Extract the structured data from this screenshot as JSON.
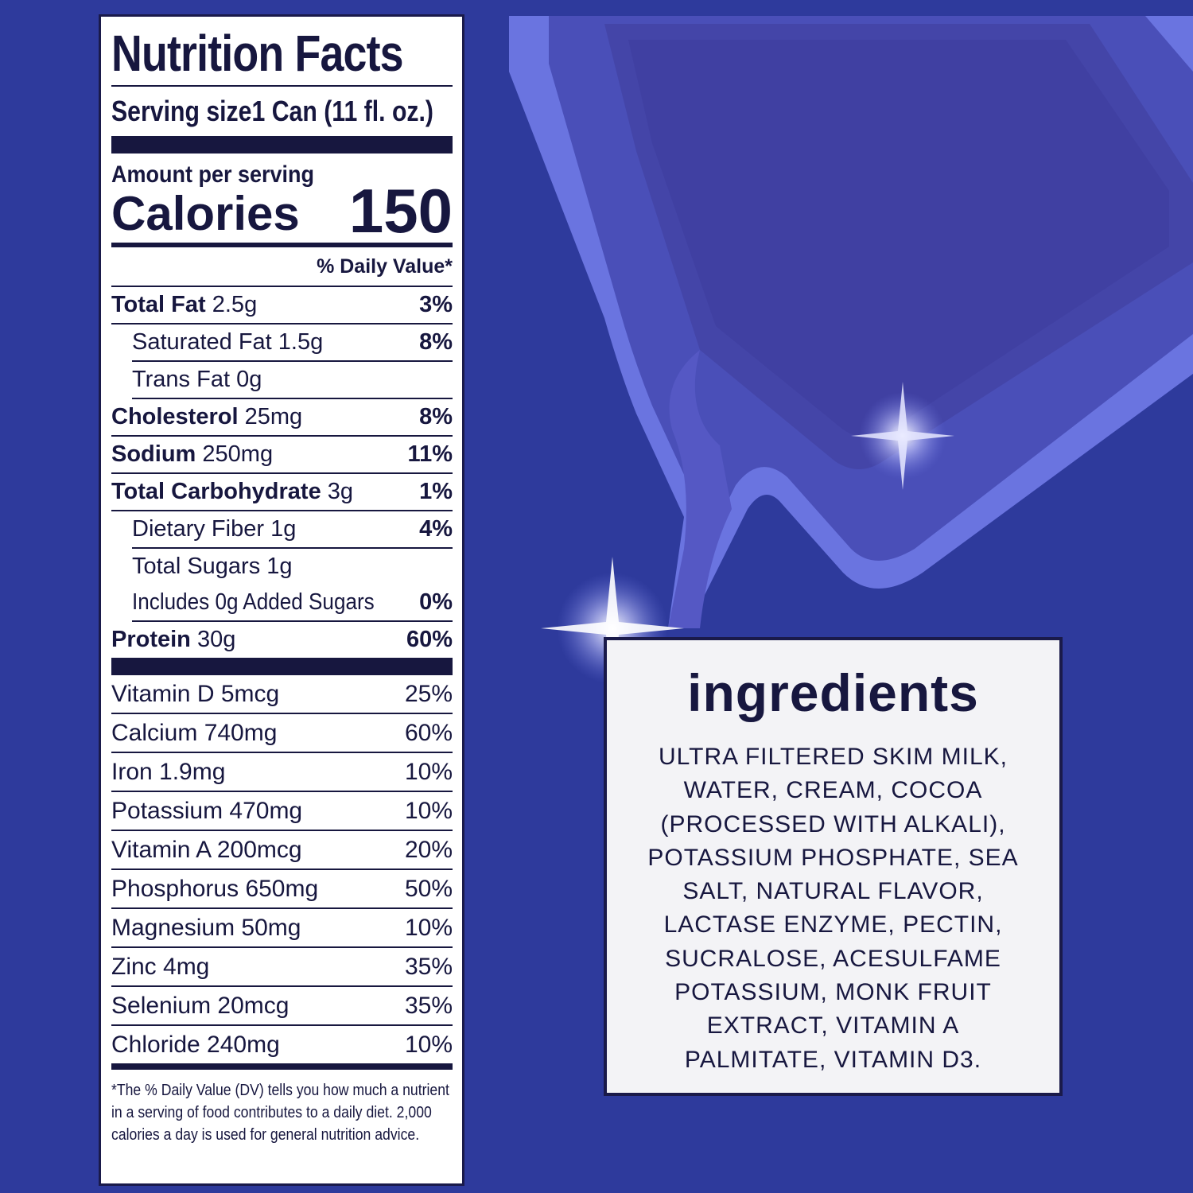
{
  "colors": {
    "background": "#2e3a9c",
    "ink": "#17173f",
    "label_bg": "#ffffff",
    "accent_light": "#6a74e0"
  },
  "nutrition": {
    "title": "Nutrition Facts",
    "serving_label": "Serving size",
    "serving_value": "1 Can (11 fl. oz.)",
    "amount_per_serving": "Amount per serving",
    "calories_label": "Calories",
    "calories_value": "150",
    "dv_header": "% Daily Value*",
    "rows": [
      {
        "name": "Total Fat",
        "amount": "2.5g",
        "dv": "3%"
      },
      {
        "name": "Saturated Fat",
        "amount": "1.5g",
        "dv": "8%"
      },
      {
        "name": "Trans Fat",
        "amount": "0g",
        "dv": ""
      },
      {
        "name": "Cholesterol",
        "amount": "25mg",
        "dv": "8%"
      },
      {
        "name": "Sodium",
        "amount": "250mg",
        "dv": "11%"
      },
      {
        "name": "Total Carbohydrate",
        "amount": "3g",
        "dv": "1%"
      },
      {
        "name": "Dietary Fiber",
        "amount": "1g",
        "dv": "4%"
      },
      {
        "name": "Total Sugars",
        "amount": "1g",
        "dv": ""
      },
      {
        "name": "Includes 0g Added Sugars",
        "amount": "",
        "dv": "0%"
      },
      {
        "name": "Protein",
        "amount": "30g",
        "dv": "60%"
      }
    ],
    "vitamins": [
      {
        "name": "Vitamin D 5mcg",
        "dv": "25%"
      },
      {
        "name": "Calcium 740mg",
        "dv": "60%"
      },
      {
        "name": "Iron 1.9mg",
        "dv": "10%"
      },
      {
        "name": "Potassium 470mg",
        "dv": "10%"
      },
      {
        "name": "Vitamin A 200mcg",
        "dv": "20%"
      },
      {
        "name": "Phosphorus 650mg",
        "dv": "50%"
      },
      {
        "name": "Magnesium 50mg",
        "dv": "10%"
      },
      {
        "name": "Zinc 4mg",
        "dv": "35%"
      },
      {
        "name": "Selenium 20mcg",
        "dv": "35%"
      },
      {
        "name": "Chloride 240mg",
        "dv": "10%"
      }
    ],
    "footnote_lines": [
      "*The % Daily Value (DV) tells you how much a nutrient",
      "in a serving of food contributes to a daily diet. 2,000",
      "calories a day is used for general nutrition advice."
    ]
  },
  "ingredients": {
    "title": "ingredients",
    "lines": [
      "ULTRA FILTERED SKIM MILK,",
      "WATER, CREAM, COCOA",
      "(PROCESSED WITH ALKALI),",
      "POTASSIUM PHOSPHATE, SEA",
      "SALT, NATURAL FLAVOR,",
      "LACTASE ENZYME, PECTIN,",
      "SUCRALOSE, ACESULFAME",
      "POTASSIUM, MONK FRUIT",
      "EXTRACT, VITAMIN A",
      "PALMITATE, VITAMIN D3."
    ]
  }
}
